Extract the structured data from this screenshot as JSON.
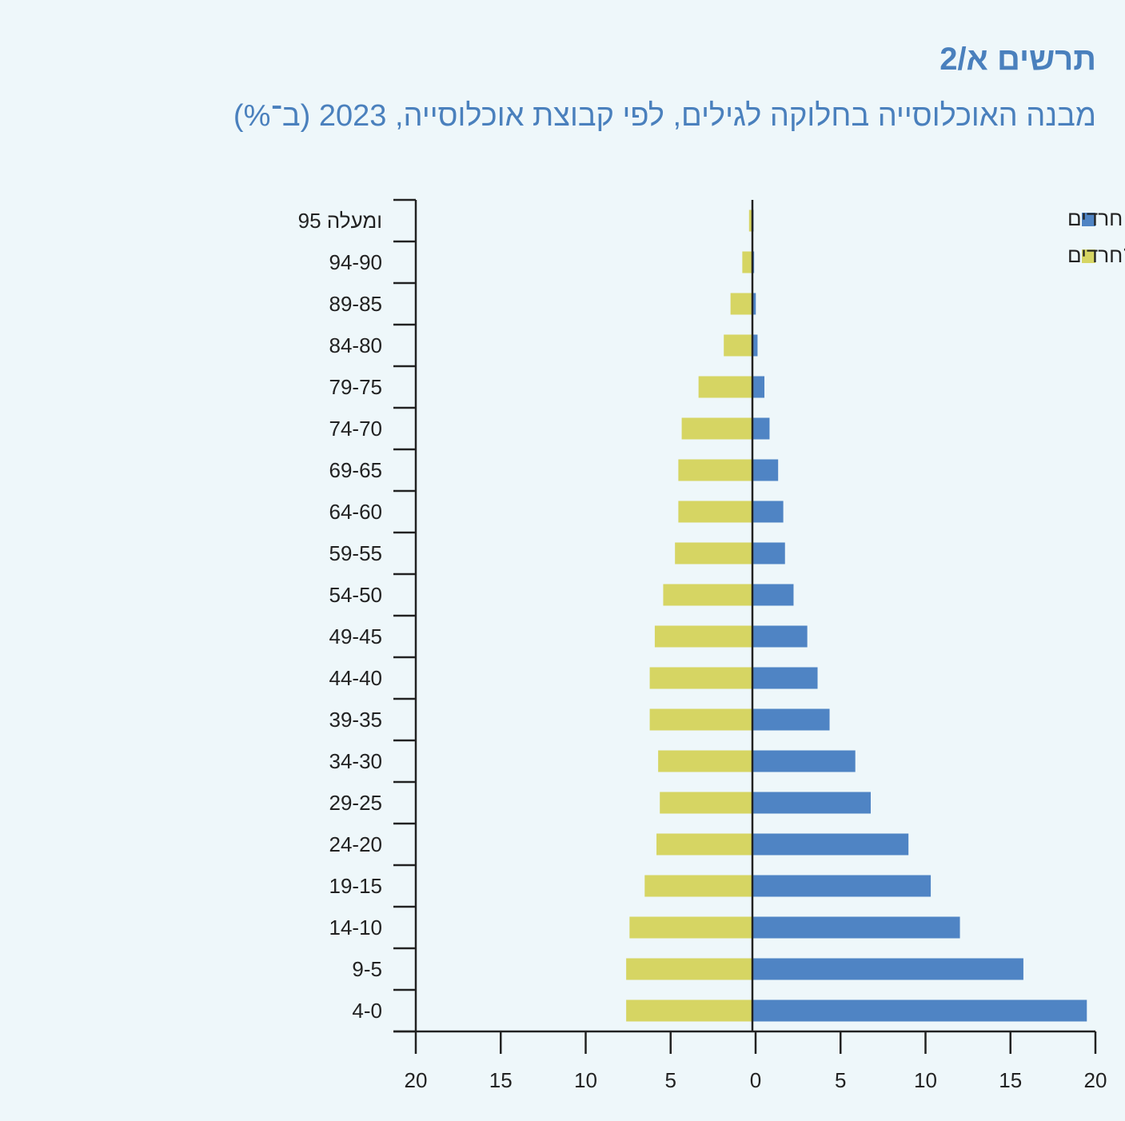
{
  "header": {
    "title": "תרשים א/2",
    "subtitle": "מבנה האוכלוסייה בחלוקה לגילים, לפי קבוצת אוכלוסייה, 2023 (ב־%)"
  },
  "colors": {
    "haredi": "#4f84c4",
    "non_haredi": "#d6d563",
    "axis": "#222222",
    "title": "#4a80bd"
  },
  "chart_data": {
    "type": "bar",
    "orientation": "horizontal-population-pyramid",
    "categories": [
      "95 ומעלה",
      "94-90",
      "89-85",
      "84-80",
      "79-75",
      "74-70",
      "69-65",
      "64-60",
      "59-55",
      "54-50",
      "49-45",
      "44-40",
      "39-35",
      "34-30",
      "29-25",
      "24-20",
      "19-15",
      "14-10",
      "9-5",
      "4-0"
    ],
    "series": [
      {
        "name": "חרדים",
        "side": "right",
        "color": "#4f84c4",
        "values": [
          0.05,
          0.1,
          0.2,
          0.3,
          0.7,
          1.0,
          1.5,
          1.8,
          1.9,
          2.4,
          3.2,
          3.8,
          4.5,
          6.0,
          6.9,
          9.1,
          10.4,
          12.1,
          15.8,
          19.5
        ]
      },
      {
        "name": "יהודים לא־חרדים",
        "side": "left",
        "color": "#d6d563",
        "values": [
          0.2,
          0.6,
          1.3,
          1.7,
          3.2,
          4.2,
          4.4,
          4.4,
          4.6,
          5.3,
          5.8,
          6.1,
          6.1,
          5.6,
          5.5,
          5.7,
          6.4,
          7.3,
          7.5,
          7.5
        ]
      }
    ],
    "xlim": [
      -20,
      20
    ],
    "xticks": [
      20,
      15,
      10,
      5,
      0,
      5,
      10,
      15,
      20
    ],
    "legend": "top-right",
    "grid": false
  }
}
